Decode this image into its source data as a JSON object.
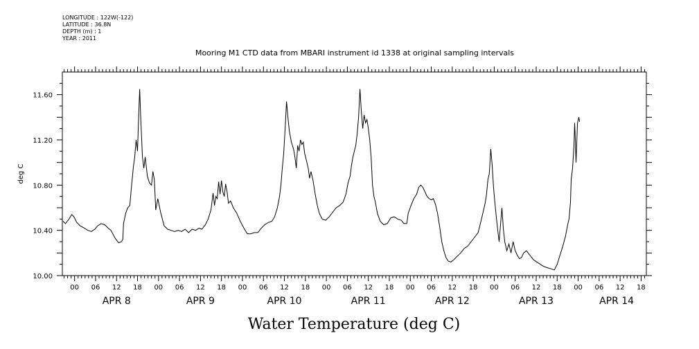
{
  "meta_lines": [
    "LONGITUDE : 122W(-122)",
    "LATITUDE : 36.8N",
    "DEPTH (m) : 1",
    "YEAR : 2011"
  ],
  "chart_data": {
    "type": "line",
    "title": "Mooring M1 CTD data from MBARI instrument id 1338 at original sampling intervals",
    "xlabel": "Water Temperature (deg C)",
    "ylabel": "deg C",
    "x_unit": "hours since APR 7 2011 00:00",
    "xlim": [
      20.5,
      187.5
    ],
    "ylim": [
      10.0,
      11.8
    ],
    "y_ticks": [
      "10.00",
      "10.40",
      "10.80",
      "11.20",
      "11.60"
    ],
    "y_tick_values": [
      10.0,
      10.4,
      10.8,
      11.2,
      11.6
    ],
    "x_ticks": [
      {
        "x": 24,
        "label": "00"
      },
      {
        "x": 30,
        "label": "06"
      },
      {
        "x": 36,
        "label": "12"
      },
      {
        "x": 42,
        "label": "18"
      },
      {
        "x": 48,
        "label": "00"
      },
      {
        "x": 54,
        "label": "06"
      },
      {
        "x": 60,
        "label": "12"
      },
      {
        "x": 66,
        "label": "18"
      },
      {
        "x": 72,
        "label": "00"
      },
      {
        "x": 78,
        "label": "06"
      },
      {
        "x": 84,
        "label": "12"
      },
      {
        "x": 90,
        "label": "18"
      },
      {
        "x": 96,
        "label": "00"
      },
      {
        "x": 102,
        "label": "06"
      },
      {
        "x": 108,
        "label": "12"
      },
      {
        "x": 114,
        "label": "18"
      },
      {
        "x": 120,
        "label": "00"
      },
      {
        "x": 126,
        "label": "06"
      },
      {
        "x": 132,
        "label": "12"
      },
      {
        "x": 138,
        "label": "18"
      },
      {
        "x": 144,
        "label": "00"
      },
      {
        "x": 150,
        "label": "06"
      },
      {
        "x": 156,
        "label": "12"
      },
      {
        "x": 162,
        "label": "18"
      },
      {
        "x": 168,
        "label": "00"
      },
      {
        "x": 174,
        "label": "06"
      },
      {
        "x": 180,
        "label": "12"
      },
      {
        "x": 186,
        "label": "18"
      }
    ],
    "day_labels": [
      {
        "x": 36,
        "label": "APR  8"
      },
      {
        "x": 60,
        "label": "APR  9"
      },
      {
        "x": 84,
        "label": "APR 10"
      },
      {
        "x": 108,
        "label": "APR 11"
      },
      {
        "x": 132,
        "label": "APR 12"
      },
      {
        "x": 156,
        "label": "APR 13"
      },
      {
        "x": 179,
        "label": "APR 14"
      }
    ],
    "series": [
      {
        "color": "#000000",
        "points": [
          [
            20.7,
            10.48
          ],
          [
            21.4,
            10.46
          ],
          [
            22.4,
            10.5
          ],
          [
            23.2,
            10.54
          ],
          [
            23.8,
            10.52
          ],
          [
            24.6,
            10.47
          ],
          [
            25.6,
            10.44
          ],
          [
            26.8,
            10.42
          ],
          [
            27.8,
            10.4
          ],
          [
            28.8,
            10.39
          ],
          [
            29.8,
            10.41
          ],
          [
            30.6,
            10.44
          ],
          [
            31.6,
            10.46
          ],
          [
            32.6,
            10.45
          ],
          [
            33.6,
            10.42
          ],
          [
            34.4,
            10.4
          ],
          [
            35.6,
            10.33
          ],
          [
            36.6,
            10.29
          ],
          [
            37.4,
            10.3
          ],
          [
            37.8,
            10.32
          ],
          [
            38.0,
            10.46
          ],
          [
            38.6,
            10.55
          ],
          [
            39.2,
            10.6
          ],
          [
            39.8,
            10.62
          ],
          [
            40.2,
            10.76
          ],
          [
            40.8,
            10.96
          ],
          [
            41.2,
            11.05
          ],
          [
            41.6,
            11.2
          ],
          [
            42.0,
            11.1
          ],
          [
            42.3,
            11.38
          ],
          [
            42.6,
            11.65
          ],
          [
            42.9,
            11.4
          ],
          [
            43.4,
            11.05
          ],
          [
            43.8,
            10.95
          ],
          [
            44.2,
            11.05
          ],
          [
            44.8,
            10.88
          ],
          [
            45.4,
            10.82
          ],
          [
            46.0,
            10.8
          ],
          [
            46.4,
            10.92
          ],
          [
            46.8,
            10.85
          ],
          [
            47.2,
            10.58
          ],
          [
            47.8,
            10.68
          ],
          [
            48.6,
            10.56
          ],
          [
            49.6,
            10.44
          ],
          [
            50.6,
            10.41
          ],
          [
            51.6,
            10.4
          ],
          [
            52.6,
            10.39
          ],
          [
            53.6,
            10.4
          ],
          [
            54.6,
            10.39
          ],
          [
            55.6,
            10.41
          ],
          [
            56.6,
            10.38
          ],
          [
            57.6,
            10.41
          ],
          [
            58.6,
            10.4
          ],
          [
            59.6,
            10.42
          ],
          [
            60.4,
            10.41
          ],
          [
            61.4,
            10.45
          ],
          [
            62.2,
            10.5
          ],
          [
            63.0,
            10.58
          ],
          [
            63.6,
            10.73
          ],
          [
            64.0,
            10.62
          ],
          [
            64.4,
            10.7
          ],
          [
            64.8,
            10.68
          ],
          [
            65.2,
            10.83
          ],
          [
            65.6,
            10.72
          ],
          [
            66.0,
            10.84
          ],
          [
            66.4,
            10.74
          ],
          [
            66.8,
            10.7
          ],
          [
            67.2,
            10.81
          ],
          [
            67.6,
            10.74
          ],
          [
            68.0,
            10.64
          ],
          [
            68.6,
            10.66
          ],
          [
            69.4,
            10.6
          ],
          [
            70.4,
            10.55
          ],
          [
            71.4,
            10.48
          ],
          [
            72.4,
            10.42
          ],
          [
            73.4,
            10.37
          ],
          [
            74.4,
            10.37
          ],
          [
            75.4,
            10.38
          ],
          [
            76.4,
            10.38
          ],
          [
            77.4,
            10.42
          ],
          [
            78.4,
            10.45
          ],
          [
            79.4,
            10.47
          ],
          [
            80.4,
            10.48
          ],
          [
            81.2,
            10.52
          ],
          [
            82.0,
            10.6
          ],
          [
            82.6,
            10.7
          ],
          [
            83.0,
            10.8
          ],
          [
            83.4,
            10.95
          ],
          [
            83.8,
            11.08
          ],
          [
            84.2,
            11.3
          ],
          [
            84.6,
            11.54
          ],
          [
            85.0,
            11.4
          ],
          [
            85.4,
            11.28
          ],
          [
            86.0,
            11.18
          ],
          [
            86.6,
            11.12
          ],
          [
            87.0,
            11.05
          ],
          [
            87.4,
            10.95
          ],
          [
            87.8,
            11.15
          ],
          [
            88.2,
            11.1
          ],
          [
            88.6,
            11.2
          ],
          [
            89.0,
            11.16
          ],
          [
            89.4,
            11.18
          ],
          [
            89.8,
            11.08
          ],
          [
            90.2,
            11.03
          ],
          [
            90.8,
            10.95
          ],
          [
            91.2,
            10.86
          ],
          [
            91.6,
            10.92
          ],
          [
            92.2,
            10.84
          ],
          [
            92.8,
            10.72
          ],
          [
            93.4,
            10.62
          ],
          [
            94.0,
            10.55
          ],
          [
            94.8,
            10.5
          ],
          [
            95.8,
            10.49
          ],
          [
            96.8,
            10.52
          ],
          [
            97.8,
            10.56
          ],
          [
            98.8,
            10.6
          ],
          [
            99.8,
            10.62
          ],
          [
            100.8,
            10.65
          ],
          [
            101.6,
            10.72
          ],
          [
            102.2,
            10.82
          ],
          [
            102.8,
            10.88
          ],
          [
            103.2,
            10.98
          ],
          [
            103.6,
            11.05
          ],
          [
            104.0,
            11.1
          ],
          [
            104.4,
            11.15
          ],
          [
            104.8,
            11.25
          ],
          [
            105.2,
            11.4
          ],
          [
            105.6,
            11.65
          ],
          [
            106.0,
            11.45
          ],
          [
            106.4,
            11.3
          ],
          [
            106.8,
            11.42
          ],
          [
            107.2,
            11.35
          ],
          [
            107.6,
            11.38
          ],
          [
            108.0,
            11.3
          ],
          [
            108.4,
            11.2
          ],
          [
            108.8,
            11.05
          ],
          [
            109.2,
            10.8
          ],
          [
            109.6,
            10.7
          ],
          [
            110.0,
            10.65
          ],
          [
            110.6,
            10.55
          ],
          [
            111.4,
            10.48
          ],
          [
            112.4,
            10.45
          ],
          [
            113.4,
            10.46
          ],
          [
            114.4,
            10.51
          ],
          [
            115.4,
            10.52
          ],
          [
            116.4,
            10.5
          ],
          [
            117.4,
            10.49
          ],
          [
            118.2,
            10.46
          ],
          [
            119.0,
            10.46
          ],
          [
            119.4,
            10.55
          ],
          [
            120.2,
            10.62
          ],
          [
            121.0,
            10.68
          ],
          [
            121.8,
            10.72
          ],
          [
            122.4,
            10.78
          ],
          [
            123.0,
            10.8
          ],
          [
            123.6,
            10.78
          ],
          [
            124.2,
            10.74
          ],
          [
            124.8,
            10.7
          ],
          [
            125.4,
            10.68
          ],
          [
            126.0,
            10.67
          ],
          [
            126.6,
            10.68
          ],
          [
            127.2,
            10.63
          ],
          [
            127.8,
            10.55
          ],
          [
            128.4,
            10.43
          ],
          [
            129.0,
            10.3
          ],
          [
            129.6,
            10.22
          ],
          [
            130.2,
            10.16
          ],
          [
            130.8,
            10.13
          ],
          [
            131.6,
            10.12
          ],
          [
            132.4,
            10.14
          ],
          [
            133.4,
            10.17
          ],
          [
            134.4,
            10.2
          ],
          [
            135.4,
            10.24
          ],
          [
            136.4,
            10.26
          ],
          [
            137.4,
            10.3
          ],
          [
            138.4,
            10.34
          ],
          [
            139.4,
            10.38
          ],
          [
            140.2,
            10.48
          ],
          [
            140.8,
            10.56
          ],
          [
            141.4,
            10.64
          ],
          [
            141.8,
            10.72
          ],
          [
            142.2,
            10.85
          ],
          [
            142.6,
            10.9
          ],
          [
            143.0,
            11.12
          ],
          [
            143.4,
            10.98
          ],
          [
            143.8,
            10.78
          ],
          [
            144.2,
            10.64
          ],
          [
            144.6,
            10.52
          ],
          [
            145.0,
            10.4
          ],
          [
            145.4,
            10.3
          ],
          [
            145.8,
            10.45
          ],
          [
            146.2,
            10.6
          ],
          [
            146.6,
            10.42
          ],
          [
            147.0,
            10.3
          ],
          [
            147.6,
            10.22
          ],
          [
            148.2,
            10.28
          ],
          [
            148.8,
            10.2
          ],
          [
            149.4,
            10.3
          ],
          [
            150.0,
            10.22
          ],
          [
            150.6,
            10.18
          ],
          [
            151.2,
            10.15
          ],
          [
            151.8,
            10.16
          ],
          [
            152.4,
            10.2
          ],
          [
            153.2,
            10.22
          ],
          [
            154.2,
            10.18
          ],
          [
            155.2,
            10.14
          ],
          [
            156.2,
            10.12
          ],
          [
            157.2,
            10.1
          ],
          [
            158.2,
            10.08
          ],
          [
            159.2,
            10.07
          ],
          [
            160.2,
            10.06
          ],
          [
            161.2,
            10.05
          ],
          [
            162.0,
            10.1
          ],
          [
            162.8,
            10.18
          ],
          [
            163.6,
            10.26
          ],
          [
            164.4,
            10.35
          ],
          [
            165.0,
            10.45
          ],
          [
            165.4,
            10.5
          ],
          [
            165.8,
            10.65
          ],
          [
            166.0,
            10.85
          ],
          [
            166.4,
            10.95
          ],
          [
            166.8,
            11.15
          ],
          [
            167.0,
            11.35
          ],
          [
            167.2,
            11.2
          ],
          [
            167.4,
            11.0
          ],
          [
            167.8,
            11.35
          ],
          [
            168.2,
            11.4
          ],
          [
            168.4,
            11.36
          ]
        ]
      }
    ]
  }
}
